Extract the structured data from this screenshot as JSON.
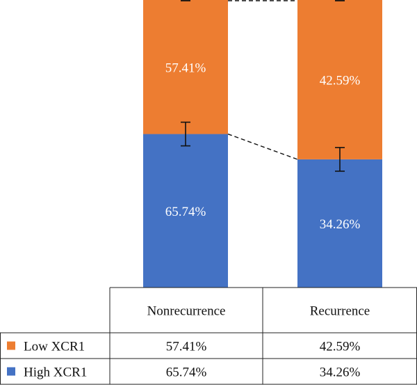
{
  "chart_data": {
    "type": "bar",
    "stacked": true,
    "normalized": true,
    "categories": [
      "Nonrecurrence",
      "Recurrence"
    ],
    "series": [
      {
        "name": "High XCR1",
        "values": [
          65.74,
          34.26
        ],
        "labels": [
          "65.74%",
          "34.26%"
        ],
        "color": "#4472c4"
      },
      {
        "name": "Low XCR1",
        "values": [
          57.41,
          42.59
        ],
        "labels": [
          "57.41%",
          "42.59%"
        ],
        "color": "#ed7d31"
      }
    ],
    "title": "",
    "xlabel": "",
    "ylabel": "",
    "grid": false,
    "legend": "data-table",
    "error_bars": true,
    "connector_lines": "dashed",
    "table": {
      "header": [
        "Nonrecurrence",
        "Recurrence"
      ],
      "rows": [
        {
          "legend": "Low XCR1",
          "color": "#ed7d31",
          "cells": [
            "57.41%",
            "42.59%"
          ]
        },
        {
          "legend": "High XCR1",
          "color": "#4472c4",
          "cells": [
            "65.74%",
            "34.26%"
          ]
        }
      ]
    }
  }
}
